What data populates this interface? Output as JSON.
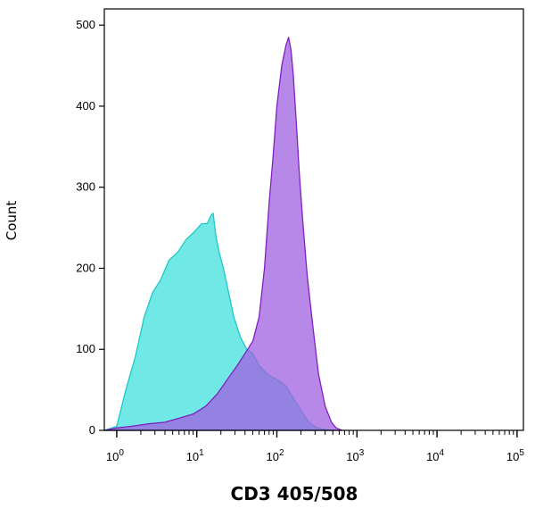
{
  "chart_data": {
    "type": "area",
    "xlabel": "CD3 405/508",
    "ylabel": "Count",
    "xscale": "log",
    "xlim": [
      0.7,
      120000
    ],
    "ylim": [
      0,
      520
    ],
    "y_ticks": [
      0,
      100,
      200,
      300,
      400,
      500
    ],
    "y_tick_labels": [
      "0",
      "100",
      "200",
      "300",
      "400",
      "500"
    ],
    "x_ticks": [
      1,
      10,
      100,
      1000,
      10000,
      100000
    ],
    "x_tick_labels": [
      {
        "base": "10",
        "exp": "0"
      },
      {
        "base": "10",
        "exp": "1"
      },
      {
        "base": "10",
        "exp": "2"
      },
      {
        "base": "10",
        "exp": "3"
      },
      {
        "base": "10",
        "exp": "4"
      },
      {
        "base": "10",
        "exp": "5"
      }
    ],
    "grid": false,
    "series": [
      {
        "color": "#40e0dc",
        "fill_opacity": 0.75,
        "stroke": "#20c8c4",
        "x": [
          0.7,
          1.0,
          1.3,
          1.7,
          2.2,
          2.8,
          3.5,
          4.5,
          5.8,
          7.3,
          9.3,
          11.5,
          13.5,
          15.0,
          16.0,
          17.3,
          19.0,
          21.5,
          25.0,
          29.0,
          35.0,
          42.0,
          50.0,
          60.0,
          75.0,
          90.0,
          110.0,
          130.0,
          160.0,
          200.0,
          250.0,
          320.0,
          400.0,
          500.0
        ],
        "y": [
          0,
          5,
          50,
          90,
          140,
          170,
          185,
          210,
          220,
          235,
          245,
          255,
          255,
          265,
          268,
          240,
          220,
          200,
          170,
          140,
          115,
          100,
          95,
          80,
          70,
          65,
          60,
          55,
          40,
          25,
          10,
          3,
          1,
          0
        ]
      },
      {
        "color": "#a060e0",
        "fill_opacity": 0.75,
        "stroke": "#8020c0",
        "x": [
          0.7,
          1.0,
          1.5,
          2.5,
          4.0,
          6.0,
          9.0,
          13.0,
          18.0,
          25.0,
          32.0,
          40.0,
          50.0,
          60.0,
          70.0,
          80.0,
          90.0,
          100.0,
          115.0,
          130.0,
          140.0,
          150.0,
          160.0,
          175.0,
          190.0,
          210.0,
          240.0,
          280.0,
          330.0,
          400.0,
          480.0,
          550.0,
          650.0
        ],
        "y": [
          0,
          3,
          5,
          8,
          10,
          15,
          20,
          30,
          45,
          65,
          80,
          95,
          110,
          140,
          200,
          280,
          340,
          400,
          450,
          475,
          485,
          470,
          440,
          380,
          320,
          260,
          190,
          130,
          70,
          30,
          10,
          3,
          0
        ]
      }
    ]
  }
}
